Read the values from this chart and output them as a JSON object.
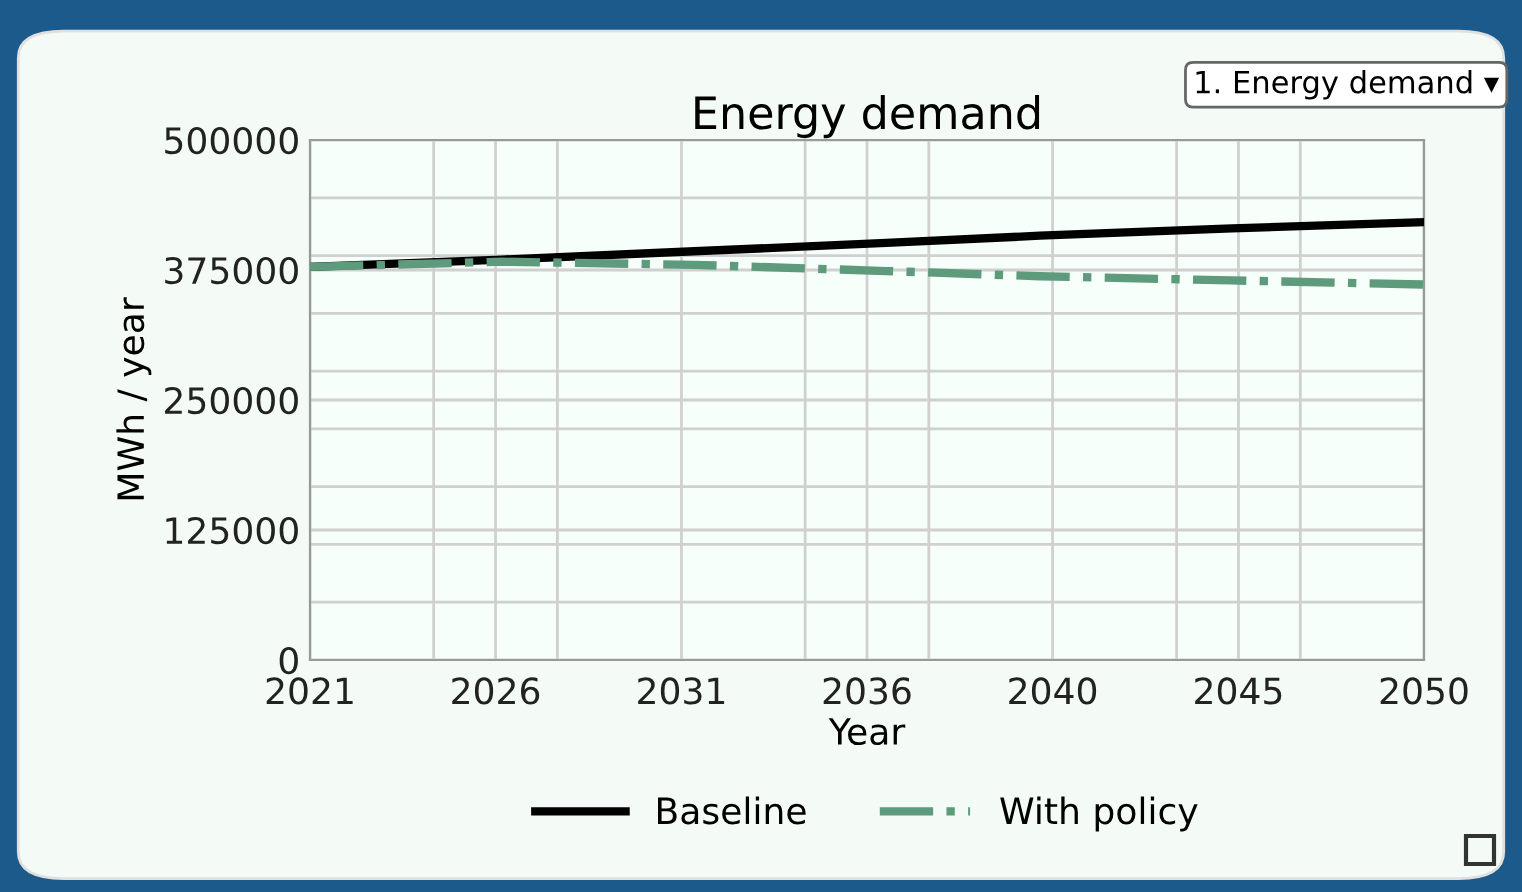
{
  "chart_data": {
    "type": "line",
    "title": "Energy demand",
    "xlabel": "Year",
    "ylabel": "MWh / year",
    "annotations": [
      "1. Energy demand ▾"
    ],
    "x": [
      2021,
      2026,
      2031,
      2036,
      2040,
      2045,
      2050
    ],
    "series": [
      {
        "name": "Baseline",
        "color": "#000000",
        "line_style": "solid",
        "values": [
          378000,
          385000,
          393000,
          401000,
          408000,
          415000,
          421000
        ]
      },
      {
        "name": "With policy",
        "color": "#5e9a7c",
        "line_style": "dashdot",
        "values": [
          378000,
          383000,
          380000,
          374000,
          369000,
          365000,
          361000
        ]
      }
    ],
    "xlim": [
      2021,
      2050
    ],
    "xticks": [
      {
        "value": 2021,
        "label": "2021"
      },
      {
        "value": 2024.22,
        "label": null
      },
      {
        "value": 2025.83,
        "label": "2026"
      },
      {
        "value": 2027.44,
        "label": null
      },
      {
        "value": 2030.67,
        "label": "2031"
      },
      {
        "value": 2033.89,
        "label": null
      },
      {
        "value": 2035.5,
        "label": "2036"
      },
      {
        "value": 2037.11,
        "label": null
      },
      {
        "value": 2040.33,
        "label": "2040"
      },
      {
        "value": 2043.56,
        "label": null
      },
      {
        "value": 2045.17,
        "label": "2045"
      },
      {
        "value": 2046.78,
        "label": null
      },
      {
        "value": 2050,
        "label": "2050"
      }
    ],
    "ylim": [
      0,
      500000
    ],
    "yticks": [
      0,
      {
        "value": 55556,
        "label": null
      },
      {
        "value": 111111,
        "label": null
      },
      125000,
      {
        "value": 166667,
        "label": null
      },
      {
        "value": 222222,
        "label": null
      },
      250000,
      {
        "value": 277778,
        "label": null
      },
      {
        "value": 333333,
        "label": null
      },
      375000,
      {
        "value": 388889,
        "label": null
      },
      {
        "value": 444444,
        "label": null
      },
      500000
    ],
    "grid": true,
    "legend": "bottom",
    "marker": "none"
  }
}
